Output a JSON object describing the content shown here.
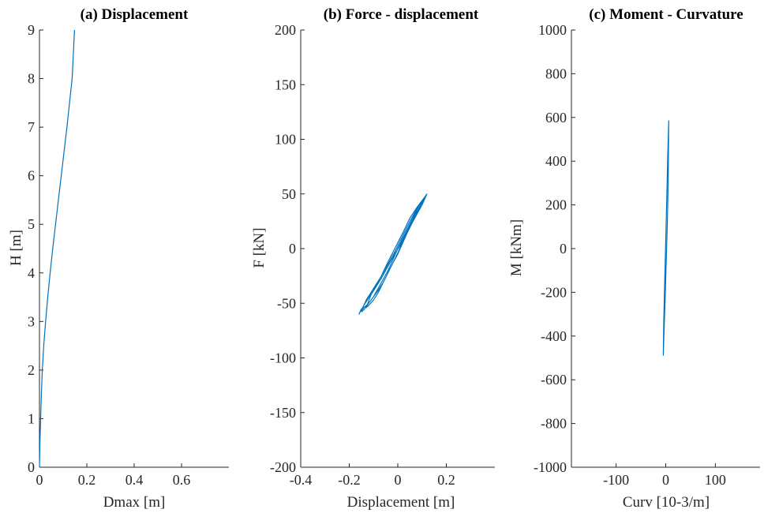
{
  "chart_data": [
    {
      "type": "line",
      "title": "(a) Displacement",
      "xlabel": "Dmax [m]",
      "ylabel": "H [m]",
      "xlim": [
        0,
        0.8
      ],
      "ylim": [
        0,
        9
      ],
      "xticks": [
        0,
        0.2,
        0.4,
        0.6
      ],
      "xtick_labels": [
        "0",
        "0.2",
        "0.4",
        "0.6"
      ],
      "yticks": [
        0,
        1,
        2,
        3,
        4,
        5,
        6,
        7,
        8,
        9
      ],
      "ytick_labels": [
        "0",
        "1",
        "2",
        "3",
        "4",
        "5",
        "6",
        "7",
        "8",
        "9"
      ],
      "series": [
        {
          "color": "#0072BD",
          "x": [
            0.0,
            0.002,
            0.005,
            0.008,
            0.012,
            0.018,
            0.026,
            0.035,
            0.045,
            0.056,
            0.068,
            0.08,
            0.092,
            0.104,
            0.116,
            0.127,
            0.138,
            0.148
          ],
          "y": [
            0.0,
            0.5,
            1.0,
            1.5,
            2.0,
            2.5,
            3.0,
            3.5,
            4.0,
            4.5,
            5.0,
            5.5,
            6.0,
            6.5,
            7.0,
            7.5,
            8.0,
            9.0
          ]
        }
      ]
    },
    {
      "type": "line",
      "title": "(b) Force - displacement",
      "xlabel": "Displacement [m]",
      "ylabel": "F [kN]",
      "xlim": [
        -0.4,
        0.4
      ],
      "ylim": [
        -200,
        200
      ],
      "xticks": [
        -0.4,
        -0.2,
        0,
        0.2
      ],
      "xtick_labels": [
        "-0.4",
        "-0.2",
        "0",
        "0.2"
      ],
      "yticks": [
        -200,
        -150,
        -100,
        -50,
        0,
        50,
        100,
        150,
        200
      ],
      "ytick_labels": [
        "-200",
        "-150",
        "-100",
        "-50",
        "0",
        "50",
        "100",
        "150",
        "200"
      ],
      "series": [
        {
          "color": "#0072BD",
          "x": [
            -0.15,
            -0.14,
            -0.12,
            -0.1,
            -0.08,
            -0.06,
            -0.04,
            -0.02,
            0.0,
            0.02,
            0.04,
            0.06,
            0.08,
            0.1,
            0.11,
            0.12,
            0.1,
            0.08,
            0.06,
            0.04,
            0.02,
            0.0,
            -0.02,
            -0.04,
            -0.06,
            -0.08,
            -0.1,
            -0.12,
            -0.14,
            -0.15,
            -0.13,
            -0.11,
            -0.09,
            -0.07,
            -0.05,
            -0.03,
            -0.01,
            0.01,
            0.03,
            0.05,
            0.07,
            0.09,
            0.11,
            0.1,
            0.08,
            0.06,
            0.04,
            0.02,
            0.0,
            -0.02,
            -0.04,
            -0.06,
            -0.08,
            -0.1,
            -0.12,
            -0.13,
            -0.11,
            -0.09,
            -0.07,
            -0.05,
            -0.03,
            -0.01,
            0.01,
            0.03,
            0.05,
            0.07,
            0.09,
            0.1,
            0.08,
            0.05,
            0.02,
            -0.01,
            -0.04,
            -0.07,
            -0.1,
            -0.14,
            -0.16,
            -0.15
          ],
          "y": [
            -58,
            -56,
            -50,
            -44,
            -38,
            -31,
            -22,
            -13,
            -5,
            5,
            15,
            24,
            32,
            40,
            45,
            50,
            44,
            36,
            27,
            18,
            9,
            0,
            -10,
            -20,
            -28,
            -36,
            -44,
            -50,
            -54,
            -57,
            -47,
            -40,
            -33,
            -26,
            -18,
            -10,
            -2,
            7,
            16,
            25,
            33,
            41,
            46,
            42,
            34,
            25,
            15,
            6,
            -4,
            -13,
            -22,
            -31,
            -40,
            -47,
            -52,
            -54,
            -42,
            -35,
            -28,
            -20,
            -12,
            -4,
            3,
            12,
            21,
            29,
            37,
            44,
            38,
            28,
            14,
            1,
            -12,
            -26,
            -38,
            -52,
            -60,
            -55
          ]
        }
      ]
    },
    {
      "type": "line",
      "title": "(c) Moment - Curvature",
      "xlabel": "Curv [10-3/m]",
      "ylabel": "M [kNm]",
      "xlim": [
        -190,
        190
      ],
      "ylim": [
        -1000,
        1000
      ],
      "xticks": [
        -100,
        0,
        100
      ],
      "xtick_labels": [
        "-100",
        "0",
        "100"
      ],
      "yticks": [
        -1000,
        -800,
        -600,
        -400,
        -200,
        0,
        200,
        400,
        600,
        800,
        1000
      ],
      "ytick_labels": [
        "-1000",
        "-800",
        "-600",
        "-400",
        "-200",
        "0",
        "200",
        "400",
        "600",
        "800",
        "1000"
      ],
      "series": [
        {
          "color": "#0072BD",
          "x": [
            -5,
            -3,
            -1,
            1,
            3,
            5,
            6,
            4,
            2,
            0,
            -2,
            -4,
            -5
          ],
          "y": [
            -490,
            -350,
            -210,
            -60,
            100,
            300,
            585,
            420,
            230,
            40,
            -150,
            -330,
            -480
          ]
        }
      ]
    }
  ]
}
